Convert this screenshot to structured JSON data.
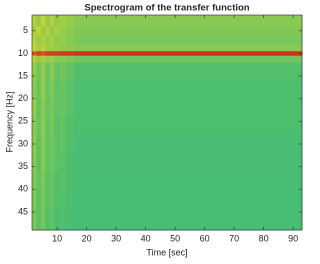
{
  "chart_data": {
    "type": "heatmap",
    "title": "Spectrogram of the transfer function",
    "xlabel": "Time [sec]",
    "ylabel": "Frequency [Hz]",
    "xlim": [
      1.5,
      93
    ],
    "ylim": [
      1.5,
      49
    ],
    "y_reversed": true,
    "xticks": [
      10,
      20,
      30,
      40,
      50,
      60,
      70,
      80,
      90
    ],
    "yticks": [
      5,
      10,
      15,
      20,
      25,
      30,
      35,
      40,
      45
    ],
    "xbins": [
      1.5,
      3,
      4.5,
      6,
      7.5,
      9,
      11,
      13,
      16,
      25,
      35,
      45,
      55,
      65,
      75,
      85,
      93
    ],
    "ybins": [
      1.5,
      4,
      6,
      8,
      9.5,
      10.5,
      12,
      16,
      20,
      24,
      28,
      32,
      36,
      40,
      44,
      49
    ],
    "clim": [
      0,
      1
    ],
    "colormap": [
      "#1a6fb0",
      "#1c9fb8",
      "#20b2aa",
      "#4cbe6e",
      "#c8d435",
      "#f08a25",
      "#c8201c"
    ],
    "z": [
      [
        0.64,
        0.6,
        0.66,
        0.6,
        0.64,
        0.6,
        0.62,
        0.6,
        0.58,
        0.58,
        0.58,
        0.58,
        0.58,
        0.58,
        0.58,
        0.58
      ],
      [
        0.62,
        0.66,
        0.6,
        0.64,
        0.6,
        0.62,
        0.6,
        0.59,
        0.57,
        0.57,
        0.57,
        0.57,
        0.57,
        0.57,
        0.57,
        0.57
      ],
      [
        0.64,
        0.6,
        0.63,
        0.6,
        0.62,
        0.59,
        0.6,
        0.58,
        0.56,
        0.56,
        0.56,
        0.56,
        0.56,
        0.56,
        0.56,
        0.56
      ],
      [
        0.66,
        0.62,
        0.64,
        0.61,
        0.62,
        0.6,
        0.6,
        0.59,
        0.58,
        0.58,
        0.58,
        0.58,
        0.58,
        0.58,
        0.58,
        0.58
      ],
      [
        0.9,
        0.95,
        0.92,
        0.95,
        0.95,
        0.95,
        0.96,
        0.96,
        0.97,
        0.97,
        0.97,
        0.97,
        0.97,
        0.97,
        0.97,
        0.97
      ],
      [
        0.64,
        0.6,
        0.62,
        0.6,
        0.61,
        0.58,
        0.58,
        0.57,
        0.55,
        0.55,
        0.55,
        0.55,
        0.55,
        0.55,
        0.55,
        0.55
      ],
      [
        0.6,
        0.55,
        0.6,
        0.54,
        0.58,
        0.54,
        0.55,
        0.53,
        0.51,
        0.51,
        0.51,
        0.51,
        0.51,
        0.51,
        0.51,
        0.51
      ],
      [
        0.58,
        0.54,
        0.6,
        0.54,
        0.57,
        0.53,
        0.54,
        0.52,
        0.5,
        0.5,
        0.5,
        0.5,
        0.5,
        0.5,
        0.5,
        0.5
      ],
      [
        0.6,
        0.53,
        0.58,
        0.54,
        0.56,
        0.53,
        0.54,
        0.52,
        0.5,
        0.5,
        0.5,
        0.5,
        0.5,
        0.5,
        0.5,
        0.5
      ],
      [
        0.58,
        0.54,
        0.59,
        0.53,
        0.56,
        0.52,
        0.53,
        0.51,
        0.5,
        0.5,
        0.5,
        0.5,
        0.5,
        0.5,
        0.5,
        0.5
      ],
      [
        0.59,
        0.53,
        0.58,
        0.53,
        0.55,
        0.52,
        0.53,
        0.51,
        0.49,
        0.49,
        0.49,
        0.49,
        0.49,
        0.49,
        0.49,
        0.49
      ],
      [
        0.58,
        0.52,
        0.58,
        0.53,
        0.55,
        0.52,
        0.52,
        0.5,
        0.49,
        0.49,
        0.49,
        0.49,
        0.49,
        0.49,
        0.49,
        0.49
      ],
      [
        0.57,
        0.53,
        0.57,
        0.52,
        0.54,
        0.51,
        0.52,
        0.5,
        0.48,
        0.48,
        0.48,
        0.48,
        0.48,
        0.48,
        0.48,
        0.48
      ],
      [
        0.57,
        0.52,
        0.56,
        0.52,
        0.54,
        0.51,
        0.51,
        0.5,
        0.48,
        0.48,
        0.48,
        0.48,
        0.48,
        0.48,
        0.48,
        0.48
      ],
      [
        0.56,
        0.52,
        0.56,
        0.51,
        0.53,
        0.5,
        0.51,
        0.49,
        0.48,
        0.48,
        0.48,
        0.48,
        0.48,
        0.48,
        0.48,
        0.48
      ]
    ]
  }
}
